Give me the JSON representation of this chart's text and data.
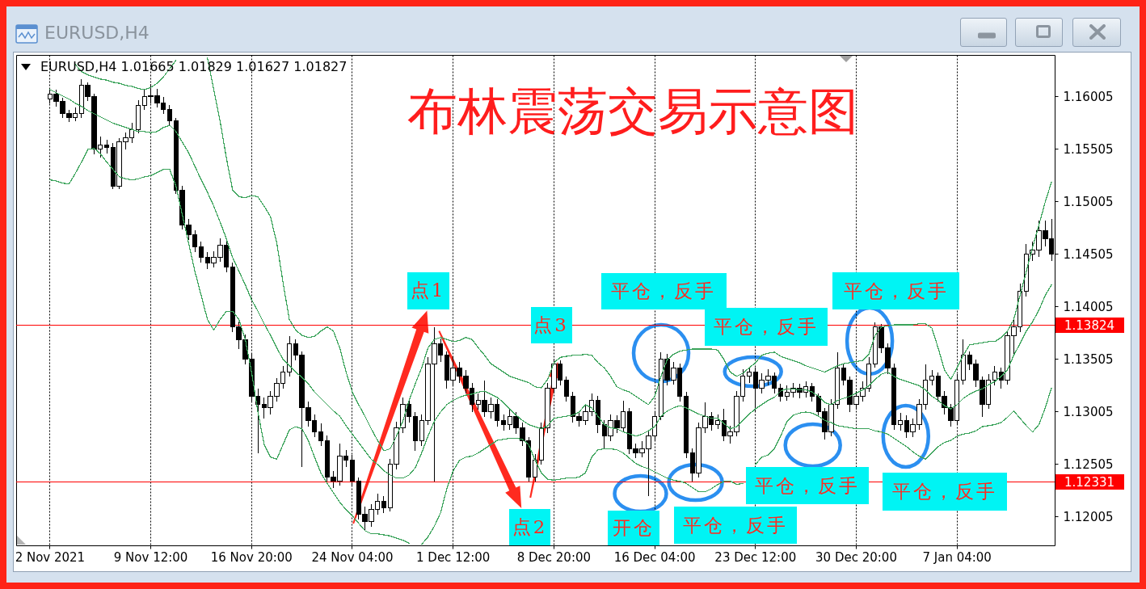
{
  "chart_data": {
    "type": "candlestick",
    "title": "布林震荡交易示意图",
    "subtitle": "EURUSD,H4 1.01665 1.01829 1.01627 1.01827",
    "annotations": [
      "EURUSD,H4",
      {
        "text": "点1",
        "y": 1.1381
      },
      "平仓，反手",
      "平仓，反手",
      "点3",
      "平仓，反手",
      "平仓，反手",
      "平仓，反手",
      {
        "text": "点2",
        "y": 1.1233
      },
      "开仓",
      "平仓，反手"
    ],
    "categories": [
      "2 Nov 2021",
      null,
      null,
      null,
      null,
      null,
      null,
      null,
      null,
      null,
      null,
      null,
      null,
      null,
      null,
      null,
      "9 Nov 12:00",
      null,
      null,
      null,
      null,
      null,
      null,
      null,
      null,
      null,
      null,
      null,
      null,
      null,
      null,
      null,
      "16 Nov 20:00",
      null,
      null,
      null,
      null,
      null,
      null,
      null,
      null,
      null,
      null,
      null,
      null,
      null,
      null,
      null,
      "24 Nov 04:00",
      null,
      null,
      null,
      null,
      null,
      null,
      null,
      null,
      null,
      null,
      null,
      null,
      null,
      null,
      null,
      "1 Dec 12:00",
      null,
      null,
      null,
      null,
      null,
      null,
      null,
      null,
      null,
      null,
      null,
      null,
      null,
      null,
      null,
      "8 Dec 20:00",
      null,
      null,
      null,
      null,
      null,
      null,
      null,
      null,
      null,
      null,
      null,
      null,
      null,
      null,
      null,
      "16 Dec 04:00",
      null,
      null,
      null,
      null,
      null,
      null,
      null,
      null,
      null,
      null,
      null,
      null,
      null,
      null,
      null,
      "23 Dec 12:00",
      null,
      null,
      null,
      null,
      null,
      null,
      null,
      null,
      null,
      null,
      null,
      null,
      null,
      null,
      null,
      "30 Dec 20:00",
      null,
      null,
      null,
      null,
      null,
      null,
      null,
      null,
      null,
      null,
      null,
      null,
      null,
      null,
      null,
      "7 Jan 04:00",
      null,
      null,
      null,
      null,
      null,
      null,
      null,
      null,
      null,
      null,
      null,
      null,
      null,
      null,
      null
    ],
    "ohlc": [
      [
        1.1598,
        1.1608,
        1.1594,
        1.1603
      ],
      [
        1.1603,
        1.1607,
        1.1591,
        1.1596
      ],
      [
        1.1596,
        1.1599,
        1.158,
        1.1584
      ],
      [
        1.1584,
        1.1588,
        1.1576,
        1.158
      ],
      [
        1.158,
        1.159,
        1.1577,
        1.1584
      ],
      [
        1.1584,
        1.1617,
        1.158,
        1.1611
      ],
      [
        1.1611,
        1.1614,
        1.1596,
        1.16
      ],
      [
        1.16,
        1.1603,
        1.1545,
        1.155
      ],
      [
        1.155,
        1.1562,
        1.1542,
        1.1554
      ],
      [
        1.1554,
        1.1559,
        1.1546,
        1.1552
      ],
      [
        1.1552,
        1.1556,
        1.1512,
        1.1515
      ],
      [
        1.1515,
        1.1561,
        1.1512,
        1.1557
      ],
      [
        1.1557,
        1.1566,
        1.155,
        1.1561
      ],
      [
        1.1561,
        1.1575,
        1.1556,
        1.1569
      ],
      [
        1.1569,
        1.1597,
        1.1565,
        1.1592
      ],
      [
        1.1592,
        1.1608,
        1.1588,
        1.16
      ],
      [
        1.16,
        1.1612,
        1.1594,
        1.1601
      ],
      [
        1.1601,
        1.1608,
        1.159,
        1.1594
      ],
      [
        1.1594,
        1.16,
        1.1584,
        1.1588
      ],
      [
        1.1588,
        1.1592,
        1.1572,
        1.1577
      ],
      [
        1.1577,
        1.158,
        1.1508,
        1.1511
      ],
      [
        1.1511,
        1.1515,
        1.1474,
        1.1478
      ],
      [
        1.1478,
        1.1484,
        1.1464,
        1.1469
      ],
      [
        1.1469,
        1.1473,
        1.1452,
        1.1457
      ],
      [
        1.1457,
        1.1462,
        1.1442,
        1.1447
      ],
      [
        1.1447,
        1.1452,
        1.1436,
        1.1442
      ],
      [
        1.1442,
        1.1453,
        1.1438,
        1.1447
      ],
      [
        1.1447,
        1.1465,
        1.1443,
        1.1459
      ],
      [
        1.1459,
        1.1463,
        1.1433,
        1.1438
      ],
      [
        1.1438,
        1.1442,
        1.1376,
        1.1381
      ],
      [
        1.1381,
        1.1386,
        1.136,
        1.1369
      ],
      [
        1.1369,
        1.1374,
        1.1345,
        1.135
      ],
      [
        1.135,
        1.1355,
        1.131,
        1.1315
      ],
      [
        1.1315,
        1.1322,
        1.1261,
        1.1307
      ],
      [
        1.1307,
        1.1314,
        1.1294,
        1.1304
      ],
      [
        1.1304,
        1.132,
        1.1298,
        1.1315
      ],
      [
        1.1315,
        1.1332,
        1.131,
        1.1327
      ],
      [
        1.1327,
        1.1344,
        1.1322,
        1.1338
      ],
      [
        1.1338,
        1.1372,
        1.1334,
        1.1365
      ],
      [
        1.1365,
        1.1369,
        1.1349,
        1.1354
      ],
      [
        1.1354,
        1.1358,
        1.1248,
        1.1304
      ],
      [
        1.1304,
        1.131,
        1.1286,
        1.1292
      ],
      [
        1.1292,
        1.1298,
        1.1276,
        1.1281
      ],
      [
        1.1281,
        1.1289,
        1.1268,
        1.1273
      ],
      [
        1.1273,
        1.1278,
        1.1233,
        1.1238
      ],
      [
        1.1238,
        1.1244,
        1.1228,
        1.1234
      ],
      [
        1.1234,
        1.127,
        1.123,
        1.1258
      ],
      [
        1.1258,
        1.1264,
        1.1248,
        1.1254
      ],
      [
        1.1254,
        1.1259,
        1.1229,
        1.1234
      ],
      [
        1.1234,
        1.1238,
        1.1198,
        1.1203
      ],
      [
        1.1203,
        1.121,
        1.1188,
        1.1196
      ],
      [
        1.1196,
        1.1212,
        1.1191,
        1.1207
      ],
      [
        1.1207,
        1.1222,
        1.1202,
        1.1215
      ],
      [
        1.1215,
        1.122,
        1.1204,
        1.1209
      ],
      [
        1.1209,
        1.1255,
        1.1205,
        1.125
      ],
      [
        1.125,
        1.1291,
        1.1245,
        1.1285
      ],
      [
        1.1285,
        1.1314,
        1.128,
        1.1307
      ],
      [
        1.1307,
        1.1313,
        1.129,
        1.1296
      ],
      [
        1.1296,
        1.13,
        1.1263,
        1.1273
      ],
      [
        1.1273,
        1.1298,
        1.1268,
        1.1292
      ],
      [
        1.1292,
        1.1352,
        1.1288,
        1.1346
      ],
      [
        1.1346,
        1.1381,
        1.1233,
        1.1365
      ],
      [
        1.1365,
        1.137,
        1.1348,
        1.1354
      ],
      [
        1.1354,
        1.1358,
        1.1322,
        1.133
      ],
      [
        1.133,
        1.1352,
        1.1325,
        1.1342
      ],
      [
        1.1342,
        1.1348,
        1.1328,
        1.1334
      ],
      [
        1.1334,
        1.134,
        1.1318,
        1.1323
      ],
      [
        1.1323,
        1.1328,
        1.13,
        1.1307
      ],
      [
        1.1307,
        1.1318,
        1.1302,
        1.1311
      ],
      [
        1.1311,
        1.133,
        1.1295,
        1.13
      ],
      [
        1.13,
        1.1314,
        1.1294,
        1.1307
      ],
      [
        1.1307,
        1.1312,
        1.1286,
        1.1292
      ],
      [
        1.1292,
        1.1298,
        1.1282,
        1.1288
      ],
      [
        1.1288,
        1.1304,
        1.1283,
        1.1296
      ],
      [
        1.1296,
        1.13,
        1.1279,
        1.1285
      ],
      [
        1.1285,
        1.129,
        1.1268,
        1.1273
      ],
      [
        1.1273,
        1.1276,
        1.1233,
        1.1238
      ],
      [
        1.1238,
        1.126,
        1.1234,
        1.1254
      ],
      [
        1.1254,
        1.129,
        1.125,
        1.1285
      ],
      [
        1.1285,
        1.1328,
        1.128,
        1.1323
      ],
      [
        1.1323,
        1.1351,
        1.1318,
        1.1346
      ],
      [
        1.1346,
        1.1349,
        1.1325,
        1.133
      ],
      [
        1.133,
        1.1334,
        1.131,
        1.1315
      ],
      [
        1.1315,
        1.1319,
        1.129,
        1.1296
      ],
      [
        1.1296,
        1.13,
        1.1286,
        1.1292
      ],
      [
        1.1292,
        1.1306,
        1.1288,
        1.13
      ],
      [
        1.13,
        1.1318,
        1.1296,
        1.1311
      ],
      [
        1.1311,
        1.1315,
        1.128,
        1.1288
      ],
      [
        1.1288,
        1.1292,
        1.1265,
        1.1277
      ],
      [
        1.1277,
        1.1298,
        1.1272,
        1.1292
      ],
      [
        1.1292,
        1.1297,
        1.128,
        1.1285
      ],
      [
        1.1285,
        1.1311,
        1.1281,
        1.13
      ],
      [
        1.13,
        1.1304,
        1.126,
        1.1265
      ],
      [
        1.1265,
        1.127,
        1.1256,
        1.1261
      ],
      [
        1.1261,
        1.1272,
        1.1257,
        1.1265
      ],
      [
        1.1265,
        1.1282,
        1.122,
        1.1277
      ],
      [
        1.1277,
        1.1301,
        1.1272,
        1.1296
      ],
      [
        1.1296,
        1.1357,
        1.1292,
        1.135
      ],
      [
        1.135,
        1.1355,
        1.1325,
        1.133
      ],
      [
        1.133,
        1.1348,
        1.1326,
        1.1342
      ],
      [
        1.1342,
        1.1346,
        1.131,
        1.1315
      ],
      [
        1.1315,
        1.1319,
        1.1256,
        1.1261
      ],
      [
        1.1261,
        1.1265,
        1.1233,
        1.1242
      ],
      [
        1.1242,
        1.129,
        1.1238,
        1.1285
      ],
      [
        1.1285,
        1.1309,
        1.128,
        1.1296
      ],
      [
        1.1296,
        1.13,
        1.1282,
        1.1288
      ],
      [
        1.1288,
        1.1298,
        1.1284,
        1.1292
      ],
      [
        1.1292,
        1.1303,
        1.1272,
        1.1277
      ],
      [
        1.1277,
        1.1287,
        1.127,
        1.1281
      ],
      [
        1.1281,
        1.132,
        1.1277,
        1.1315
      ],
      [
        1.1315,
        1.1341,
        1.131,
        1.1334
      ],
      [
        1.1334,
        1.1343,
        1.1328,
        1.1338
      ],
      [
        1.1338,
        1.1342,
        1.13,
        1.1323
      ],
      [
        1.1323,
        1.1337,
        1.1318,
        1.133
      ],
      [
        1.133,
        1.1341,
        1.1325,
        1.1334
      ],
      [
        1.1334,
        1.1338,
        1.1318,
        1.1323
      ],
      [
        1.1323,
        1.1327,
        1.131,
        1.1315
      ],
      [
        1.1315,
        1.1325,
        1.1311,
        1.1319
      ],
      [
        1.1319,
        1.1328,
        1.1314,
        1.1323
      ],
      [
        1.1323,
        1.1327,
        1.1313,
        1.1319
      ],
      [
        1.1319,
        1.1329,
        1.1314,
        1.1324
      ],
      [
        1.1324,
        1.1328,
        1.131,
        1.1315
      ],
      [
        1.1315,
        1.1318,
        1.1295,
        1.13
      ],
      [
        1.13,
        1.1304,
        1.1274,
        1.1281
      ],
      [
        1.1281,
        1.1312,
        1.1277,
        1.1307
      ],
      [
        1.1307,
        1.1357,
        1.1303,
        1.1342
      ],
      [
        1.1342,
        1.1346,
        1.1325,
        1.133
      ],
      [
        1.133,
        1.1334,
        1.13,
        1.1307
      ],
      [
        1.1307,
        1.132,
        1.1302,
        1.1315
      ],
      [
        1.1315,
        1.1329,
        1.131,
        1.1323
      ],
      [
        1.1323,
        1.1352,
        1.1319,
        1.1346
      ],
      [
        1.1346,
        1.1385,
        1.1342,
        1.1381
      ],
      [
        1.1381,
        1.1384,
        1.1356,
        1.1361
      ],
      [
        1.1361,
        1.1365,
        1.1336,
        1.1342
      ],
      [
        1.1342,
        1.1346,
        1.1283,
        1.1288
      ],
      [
        1.1288,
        1.1299,
        1.1282,
        1.1292
      ],
      [
        1.1292,
        1.1297,
        1.1275,
        1.1281
      ],
      [
        1.1281,
        1.1294,
        1.1276,
        1.1288
      ],
      [
        1.1288,
        1.1312,
        1.1283,
        1.1307
      ],
      [
        1.1307,
        1.1345,
        1.1302,
        1.133
      ],
      [
        1.133,
        1.134,
        1.1325,
        1.1334
      ],
      [
        1.1334,
        1.1338,
        1.131,
        1.1315
      ],
      [
        1.1315,
        1.132,
        1.1298,
        1.1304
      ],
      [
        1.1304,
        1.1308,
        1.1286,
        1.1292
      ],
      [
        1.1292,
        1.1336,
        1.1288,
        1.133
      ],
      [
        1.133,
        1.1369,
        1.1326,
        1.1354
      ],
      [
        1.1354,
        1.1358,
        1.134,
        1.1346
      ],
      [
        1.1346,
        1.135,
        1.1324,
        1.133
      ],
      [
        1.133,
        1.1334,
        1.1295,
        1.1307
      ],
      [
        1.1307,
        1.1336,
        1.1303,
        1.133
      ],
      [
        1.133,
        1.1344,
        1.1325,
        1.1338
      ],
      [
        1.1338,
        1.1342,
        1.1322,
        1.133
      ],
      [
        1.133,
        1.1378,
        1.1326,
        1.1373
      ],
      [
        1.1373,
        1.139,
        1.1355,
        1.1381
      ],
      [
        1.1381,
        1.1422,
        1.1376,
        1.1415
      ],
      [
        1.1415,
        1.146,
        1.141,
        1.145
      ],
      [
        1.145,
        1.1462,
        1.1444,
        1.1454
      ],
      [
        1.1454,
        1.1482,
        1.1448,
        1.1473
      ],
      [
        1.1473,
        1.1482,
        1.1458,
        1.1465
      ],
      [
        1.1465,
        1.1484,
        1.1444,
        1.145
      ]
    ],
    "series": [
      {
        "type": "line",
        "color": "#3aa35a",
        "values": [
          null,
          null,
          null,
          null,
          1.1631,
          1.1624,
          1.1621,
          1.1619,
          1.1617,
          1.1616,
          1.1614,
          1.1613,
          1.1611,
          1.161,
          1.1608,
          1.1607,
          1.1609,
          1.1613,
          1.1619,
          1.1627,
          1.1635,
          null,
          null,
          null,
          null,
          1.1637,
          1.1607,
          1.1577,
          1.1542,
          1.1511,
          1.1505,
          1.1504,
          1.1506,
          1.1505,
          1.1496,
          1.1486,
          1.1461,
          1.1423,
          1.1388,
          1.1378,
          1.1373,
          1.1371,
          1.1372,
          1.1377,
          1.1381,
          1.1377,
          1.1361,
          1.1338,
          1.1319,
          1.1307,
          1.1296,
          1.1284,
          1.1273,
          1.1263,
          1.1265,
          1.1277,
          1.1291,
          1.1311,
          1.1327,
          1.1342,
          1.1361,
          1.1369,
          1.1371,
          1.1369,
          1.1367,
          1.1368,
          1.1371,
          1.1369,
          1.1361,
          1.1354,
          1.1346,
          1.1342,
          1.1338,
          1.1334,
          1.1332,
          1.133,
          1.1328,
          1.1324,
          1.1323,
          1.1331,
          1.1347,
          1.1352,
          1.1353,
          1.1354,
          1.1354,
          1.1355,
          1.1354,
          1.1347,
          1.1342,
          1.1334,
          1.1324,
          1.1321,
          1.1319,
          1.1315,
          1.1311,
          1.1307,
          1.1315,
          1.1334,
          1.135,
          1.1355,
          1.1358,
          1.1359,
          1.136,
          1.136,
          1.136,
          1.136,
          1.1359,
          1.135,
          1.1338,
          1.1334,
          1.1337,
          1.1342,
          1.1347,
          1.1354,
          1.1356,
          1.1357,
          1.1353,
          1.1351,
          1.1349,
          1.1347,
          1.1344,
          1.1342,
          1.134,
          1.1338,
          1.1341,
          1.1344,
          1.1346,
          1.1347,
          1.1348,
          1.1349,
          1.1355,
          1.1373,
          1.1381,
          1.1382,
          1.1383,
          1.1383,
          1.1383,
          1.1383,
          1.1384,
          1.1384,
          1.138,
          1.1361,
          1.134,
          1.1331,
          1.1342,
          1.1354,
          1.1364,
          1.1365,
          1.1366,
          1.1367,
          1.1367,
          1.1371,
          1.1377,
          1.1388,
          1.1411,
          1.1434,
          1.1457,
          1.1478,
          1.15,
          1.1519
        ]
      },
      {
        "type": "line",
        "color": "#3aa35a",
        "values": [
          1.1607,
          1.1604,
          1.1601,
          1.1598,
          1.1594,
          1.1591,
          1.1587,
          1.1584,
          1.1581,
          1.1578,
          1.1575,
          1.1573,
          1.1571,
          1.1569,
          1.1567,
          1.1567,
          1.1566,
          1.1567,
          1.1571,
          1.1573,
          1.1567,
          1.1557,
          1.1547,
          1.1534,
          1.1521,
          1.1509,
          1.1496,
          1.1481,
          1.1465,
          1.1447,
          1.1434,
          1.1421,
          1.1407,
          1.1396,
          1.1384,
          1.1373,
          1.1361,
          1.135,
          1.1344,
          1.1338,
          1.1333,
          1.1327,
          1.1319,
          1.1313,
          1.1307,
          1.1301,
          1.1296,
          1.1287,
          1.1279,
          1.1271,
          1.1263,
          1.1255,
          1.125,
          1.1244,
          1.124,
          1.1237,
          1.1237,
          1.124,
          1.1247,
          1.1261,
          1.1277,
          1.1291,
          1.13,
          1.1307,
          1.1311,
          1.1314,
          1.1316,
          1.1317,
          1.1319,
          1.132,
          1.1317,
          1.1314,
          1.1309,
          1.1303,
          1.1297,
          1.1292,
          1.1288,
          1.1286,
          1.1284,
          1.1287,
          1.1294,
          1.1295,
          1.1296,
          1.1297,
          1.13,
          1.1307,
          1.1304,
          1.1296,
          1.1288,
          1.1285,
          1.1284,
          1.1281,
          1.1279,
          1.1277,
          1.1279,
          1.1282,
          1.1286,
          1.1296,
          1.1301,
          1.1304,
          1.1306,
          1.1304,
          1.1301,
          1.1298,
          1.1296,
          1.1294,
          1.1294,
          1.1289,
          1.1284,
          1.1286,
          1.1292,
          1.1298,
          1.1303,
          1.1307,
          1.1311,
          1.1314,
          1.132,
          1.1322,
          1.1322,
          1.1321,
          1.1321,
          1.1319,
          1.1315,
          1.1309,
          1.1307,
          1.1311,
          1.1313,
          1.1315,
          1.1318,
          1.1321,
          1.1325,
          1.1331,
          1.1336,
          1.1338,
          1.1334,
          1.1331,
          1.1329,
          1.1327,
          1.1325,
          1.1321,
          1.1315,
          1.1311,
          1.1306,
          1.1303,
          1.1307,
          1.1313,
          1.1317,
          1.132,
          1.1322,
          1.1326,
          1.1329,
          1.1334,
          1.134,
          1.1354,
          1.1365,
          1.1377,
          1.1386,
          1.1397,
          1.1411,
          1.1421
        ]
      },
      {
        "type": "line",
        "color": "#3aa35a",
        "values": [
          1.1521,
          1.152,
          1.1518,
          1.1517,
          1.1527,
          1.1538,
          1.155,
          1.1551,
          1.1546,
          1.1538,
          1.1531,
          1.1524,
          1.1522,
          1.1521,
          1.1522,
          1.1524,
          1.1525,
          1.1528,
          1.1531,
          1.1531,
          1.1515,
          1.1488,
          1.1461,
          1.1434,
          1.1411,
          1.1388,
          1.1378,
          1.1388,
          1.1396,
          1.1396,
          1.1388,
          1.1369,
          1.1338,
          1.13,
          1.1269,
          1.1257,
          1.1255,
          1.1269,
          1.1283,
          1.1286,
          1.1284,
          1.1273,
          1.1257,
          1.1242,
          1.1232,
          1.1223,
          1.1214,
          1.1207,
          1.1201,
          1.1194,
          1.1187,
          1.1184,
          1.1184,
          1.1183,
          1.1182,
          1.118,
          1.1178,
          1.1175,
          null,
          1.1174,
          1.1181,
          1.1191,
          1.1204,
          1.1227,
          1.1244,
          1.1254,
          1.1257,
          1.1258,
          1.1261,
          1.1265,
          1.1269,
          1.1273,
          1.1274,
          1.1275,
          1.1275,
          1.1274,
          1.1269,
          1.1254,
          1.1242,
          1.1236,
          1.1235,
          1.1236,
          1.1237,
          1.1237,
          1.1238,
          1.1242,
          1.1257,
          1.1264,
          1.1265,
          1.1265,
          1.1264,
          1.1261,
          1.1256,
          1.1251,
          1.1248,
          1.1246,
          1.1243,
          1.124,
          1.1237,
          1.1235,
          1.1234,
          1.1232,
          1.1228,
          1.1224,
          1.1224,
          1.1227,
          1.1231,
          1.1234,
          1.1234,
          1.1231,
          1.1232,
          null,
          1.125,
          1.1257,
          1.1259,
          1.1265,
          1.1277,
          1.1291,
          1.1297,
          1.1299,
          1.13,
          1.1299,
          1.1296,
          1.1292,
          1.129,
          1.1287,
          1.1286,
          1.1285,
          1.1284,
          1.1284,
          1.1284,
          1.1282,
          1.1281,
          1.1279,
          1.1275,
          1.1271,
          1.1267,
          1.1262,
          1.1258,
          1.1255,
          1.1261,
          1.1267,
          1.1271,
          1.1273,
          1.1277,
          1.1279,
          1.128,
          1.1282,
          1.1286,
          1.1287,
          1.1288,
          1.129,
          1.1295,
          1.1301,
          1.1294,
          1.1287,
          1.1281,
          1.1288,
          1.1304,
          1.1323
        ]
      }
    ],
    "ylim": [
      1.1173,
      1.164
    ],
    "yticks": [
      1.12005,
      1.12505,
      1.13005,
      1.13505,
      1.14005,
      1.14505,
      1.15005,
      1.15505,
      1.16005
    ],
    "grid": "x",
    "ref_lines": [
      {
        "axis": "y",
        "value": 1.13824,
        "label": "1.13824",
        "color": "#ff0000"
      },
      {
        "axis": "y",
        "value": 1.12331,
        "label": "1.12331",
        "color": "#ff0000"
      }
    ]
  }
}
